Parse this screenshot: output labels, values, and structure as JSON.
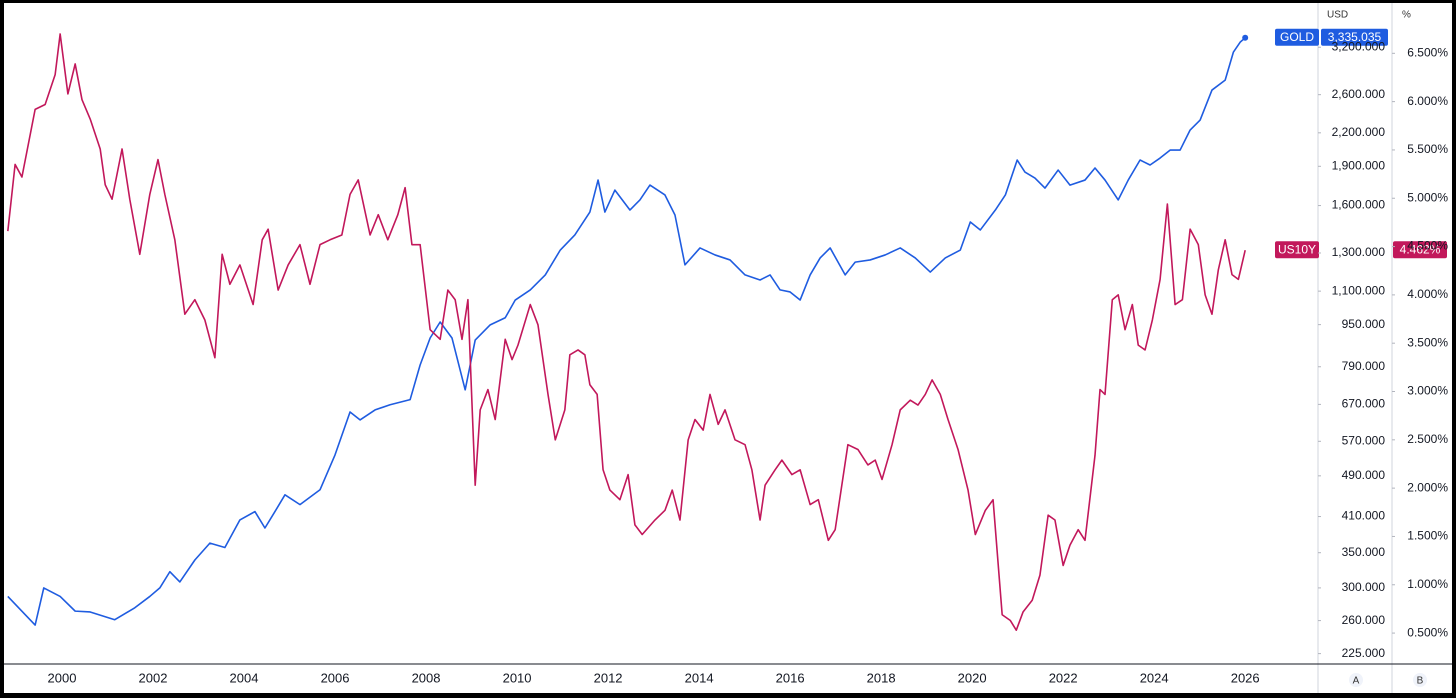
{
  "chart_data": {
    "type": "line",
    "y_unit": "USD",
    "y2_unit": "%",
    "scale_buttons": [
      "A",
      "B"
    ],
    "xlim": [
      1998.77,
      2027.6
    ],
    "xticks": [
      2000,
      2002,
      2004,
      2006,
      2008,
      2010,
      2012,
      2014,
      2016,
      2018,
      2020,
      2022,
      2024,
      2026
    ],
    "ylog": true,
    "ylim": [
      215,
      3850
    ],
    "yticks": [
      {
        "value": 225,
        "label": "225.000"
      },
      {
        "value": 260,
        "label": "260.000"
      },
      {
        "value": 300,
        "label": "300.000"
      },
      {
        "value": 350,
        "label": "350.000"
      },
      {
        "value": 410,
        "label": "410.000"
      },
      {
        "value": 490,
        "label": "490.000"
      },
      {
        "value": 570,
        "label": "570.000"
      },
      {
        "value": 670,
        "label": "670.000"
      },
      {
        "value": 790,
        "label": "790.000"
      },
      {
        "value": 950,
        "label": "950.000"
      },
      {
        "value": 1100,
        "label": "1,100.000"
      },
      {
        "value": 1300,
        "label": "1,300.000"
      },
      {
        "value": 1600,
        "label": "1,600.000"
      },
      {
        "value": 1900,
        "label": "1,900.000"
      },
      {
        "value": 2200,
        "label": "2,200.000"
      },
      {
        "value": 2600,
        "label": "2,600.000"
      },
      {
        "value": 3200,
        "label": "3,200.000"
      }
    ],
    "y2lim": [
      0.18,
      7.0
    ],
    "y2ticks": [
      {
        "value": 0.5,
        "label": "0.500%"
      },
      {
        "value": 1,
        "label": "1.000%"
      },
      {
        "value": 1.5,
        "label": "1.500%"
      },
      {
        "value": 2,
        "label": "2.000%"
      },
      {
        "value": 2.5,
        "label": "2.500%"
      },
      {
        "value": 3,
        "label": "3.000%"
      },
      {
        "value": 3.5,
        "label": "3.500%"
      },
      {
        "value": 4,
        "label": "4.000%"
      },
      {
        "value": 4.5,
        "label": "4.500%"
      },
      {
        "value": 5,
        "label": "5.000%"
      },
      {
        "value": 5.5,
        "label": "5.500%"
      },
      {
        "value": 6,
        "label": "6.000%"
      },
      {
        "value": 6.5,
        "label": "6.500%"
      }
    ],
    "series": [
      {
        "name": "GOLD",
        "color": "#1f5ce0",
        "axis": "y",
        "end_marker": true,
        "last_value_label": "3,335.035",
        "x": [
          1998.81,
          1999.41,
          1999.6,
          1999.96,
          2000.29,
          2000.62,
          2001.16,
          2001.6,
          2001.93,
          2002.15,
          2002.37,
          2002.59,
          2002.92,
          2003.25,
          2003.58,
          2003.91,
          2004.24,
          2004.46,
          2004.68,
          2004.9,
          2005.23,
          2005.67,
          2006.0,
          2006.33,
          2006.55,
          2006.88,
          2007.21,
          2007.65,
          2007.87,
          2008.09,
          2008.31,
          2008.57,
          2008.86,
          2009.08,
          2009.41,
          2009.74,
          2009.96,
          2010.29,
          2010.62,
          2010.95,
          2011.27,
          2011.6,
          2011.78,
          2011.93,
          2012.15,
          2012.48,
          2012.7,
          2012.92,
          2013.25,
          2013.47,
          2013.69,
          2014.02,
          2014.35,
          2014.68,
          2015.01,
          2015.34,
          2015.56,
          2015.78,
          2016.0,
          2016.22,
          2016.44,
          2016.66,
          2016.88,
          2017.21,
          2017.43,
          2017.76,
          2018.09,
          2018.42,
          2018.75,
          2019.08,
          2019.41,
          2019.74,
          2019.96,
          2020.18,
          2020.51,
          2020.73,
          2020.99,
          2021.16,
          2021.38,
          2021.6,
          2021.89,
          2022.15,
          2022.48,
          2022.7,
          2022.92,
          2023.21,
          2023.43,
          2023.69,
          2023.91,
          2024.13,
          2024.35,
          2024.57,
          2024.79,
          2025.01,
          2025.27,
          2025.56,
          2025.74,
          2025.89,
          2026.0
        ],
        "values": [
          289,
          255,
          300,
          289,
          271,
          270,
          261,
          275,
          289,
          300,
          322,
          308,
          339,
          365,
          358,
          404,
          419,
          390,
          419,
          451,
          432,
          461,
          537,
          648,
          626,
          654,
          669,
          684,
          796,
          896,
          961,
          896,
          714,
          888,
          949,
          979,
          1058,
          1106,
          1181,
          1317,
          1407,
          1555,
          1789,
          1555,
          1712,
          1569,
          1640,
          1750,
          1676,
          1535,
          1234,
          1329,
          1289,
          1261,
          1181,
          1155,
          1181,
          1106,
          1096,
          1058,
          1181,
          1272,
          1329,
          1181,
          1249,
          1261,
          1289,
          1329,
          1272,
          1196,
          1272,
          1317,
          1489,
          1438,
          1569,
          1676,
          1953,
          1853,
          1805,
          1727,
          1869,
          1750,
          1789,
          1886,
          1789,
          1640,
          1789,
          1953,
          1911,
          1970,
          2040,
          2040,
          2227,
          2326,
          2653,
          2771,
          3131,
          3272,
          3335.035
        ]
      },
      {
        "name": "US10Y",
        "color": "#c2185b",
        "axis": "y2",
        "end_marker": false,
        "last_value_label": "4.462%",
        "x": [
          1998.81,
          1998.97,
          1999.12,
          1999.41,
          1999.63,
          1999.85,
          1999.96,
          2000.13,
          2000.29,
          2000.44,
          2000.62,
          2000.84,
          2000.95,
          2001.1,
          2001.32,
          2001.49,
          2001.71,
          2001.93,
          2002.11,
          2002.26,
          2002.48,
          2002.7,
          2002.92,
          2003.14,
          2003.36,
          2003.52,
          2003.69,
          2003.91,
          2004.2,
          2004.4,
          2004.53,
          2004.75,
          2004.97,
          2005.23,
          2005.45,
          2005.67,
          2005.89,
          2006.15,
          2006.33,
          2006.51,
          2006.77,
          2006.95,
          2007.16,
          2007.38,
          2007.54,
          2007.69,
          2007.87,
          2008.09,
          2008.31,
          2008.48,
          2008.64,
          2008.79,
          2008.92,
          2009.08,
          2009.19,
          2009.36,
          2009.52,
          2009.74,
          2009.89,
          2010.02,
          2010.29,
          2010.46,
          2010.68,
          2010.84,
          2011.05,
          2011.16,
          2011.34,
          2011.49,
          2011.6,
          2011.76,
          2011.89,
          2012.04,
          2012.26,
          2012.44,
          2012.59,
          2012.75,
          2013.03,
          2013.25,
          2013.41,
          2013.58,
          2013.76,
          2013.91,
          2014.09,
          2014.24,
          2014.42,
          2014.57,
          2014.79,
          2015.01,
          2015.16,
          2015.34,
          2015.45,
          2015.67,
          2015.82,
          2016.04,
          2016.22,
          2016.44,
          2016.62,
          2016.84,
          2016.99,
          2017.27,
          2017.49,
          2017.71,
          2017.87,
          2018.02,
          2018.24,
          2018.42,
          2018.64,
          2018.81,
          2018.97,
          2019.12,
          2019.3,
          2019.47,
          2019.69,
          2019.91,
          2020.07,
          2020.29,
          2020.46,
          2020.66,
          2020.84,
          2020.97,
          2021.12,
          2021.32,
          2021.49,
          2021.67,
          2021.82,
          2022.0,
          2022.15,
          2022.33,
          2022.48,
          2022.7,
          2022.81,
          2022.92,
          2023.08,
          2023.21,
          2023.36,
          2023.52,
          2023.65,
          2023.8,
          2023.96,
          2024.13,
          2024.29,
          2024.46,
          2024.62,
          2024.79,
          2024.97,
          2025.12,
          2025.27,
          2025.41,
          2025.56,
          2025.71,
          2025.85,
          2026.0
        ],
        "values": [
          4.66,
          5.35,
          5.22,
          5.92,
          5.97,
          6.28,
          6.7,
          6.08,
          6.39,
          6.02,
          5.82,
          5.51,
          5.14,
          4.99,
          5.51,
          4.99,
          4.42,
          5.04,
          5.4,
          5.04,
          4.57,
          3.8,
          3.95,
          3.74,
          3.35,
          4.42,
          4.11,
          4.31,
          3.9,
          4.57,
          4.68,
          4.05,
          4.31,
          4.52,
          4.11,
          4.52,
          4.57,
          4.62,
          5.04,
          5.19,
          4.62,
          4.83,
          4.57,
          4.83,
          5.11,
          4.52,
          4.52,
          3.64,
          3.54,
          4.05,
          3.95,
          3.54,
          3.95,
          2.03,
          2.81,
          3.02,
          2.71,
          3.54,
          3.33,
          3.48,
          3.9,
          3.69,
          2.97,
          2.5,
          2.81,
          3.38,
          3.43,
          3.38,
          3.07,
          2.97,
          2.19,
          1.98,
          1.88,
          2.14,
          1.62,
          1.52,
          1.67,
          1.77,
          1.98,
          1.67,
          2.5,
          2.71,
          2.6,
          2.97,
          2.66,
          2.81,
          2.5,
          2.45,
          2.19,
          1.67,
          2.03,
          2.19,
          2.29,
          2.14,
          2.19,
          1.83,
          1.88,
          1.46,
          1.57,
          2.45,
          2.4,
          2.24,
          2.29,
          2.09,
          2.45,
          2.81,
          2.91,
          2.86,
          2.97,
          3.12,
          2.97,
          2.71,
          2.4,
          1.98,
          1.52,
          1.77,
          1.88,
          0.69,
          0.63,
          0.53,
          0.72,
          0.84,
          1.1,
          1.72,
          1.67,
          1.2,
          1.41,
          1.57,
          1.46,
          2.34,
          3.02,
          2.97,
          3.95,
          4.0,
          3.64,
          3.9,
          3.48,
          3.43,
          3.74,
          4.16,
          4.94,
          3.9,
          3.95,
          4.68,
          4.52,
          4.0,
          3.8,
          4.26,
          4.57,
          4.21,
          4.16,
          4.462
        ]
      }
    ]
  }
}
